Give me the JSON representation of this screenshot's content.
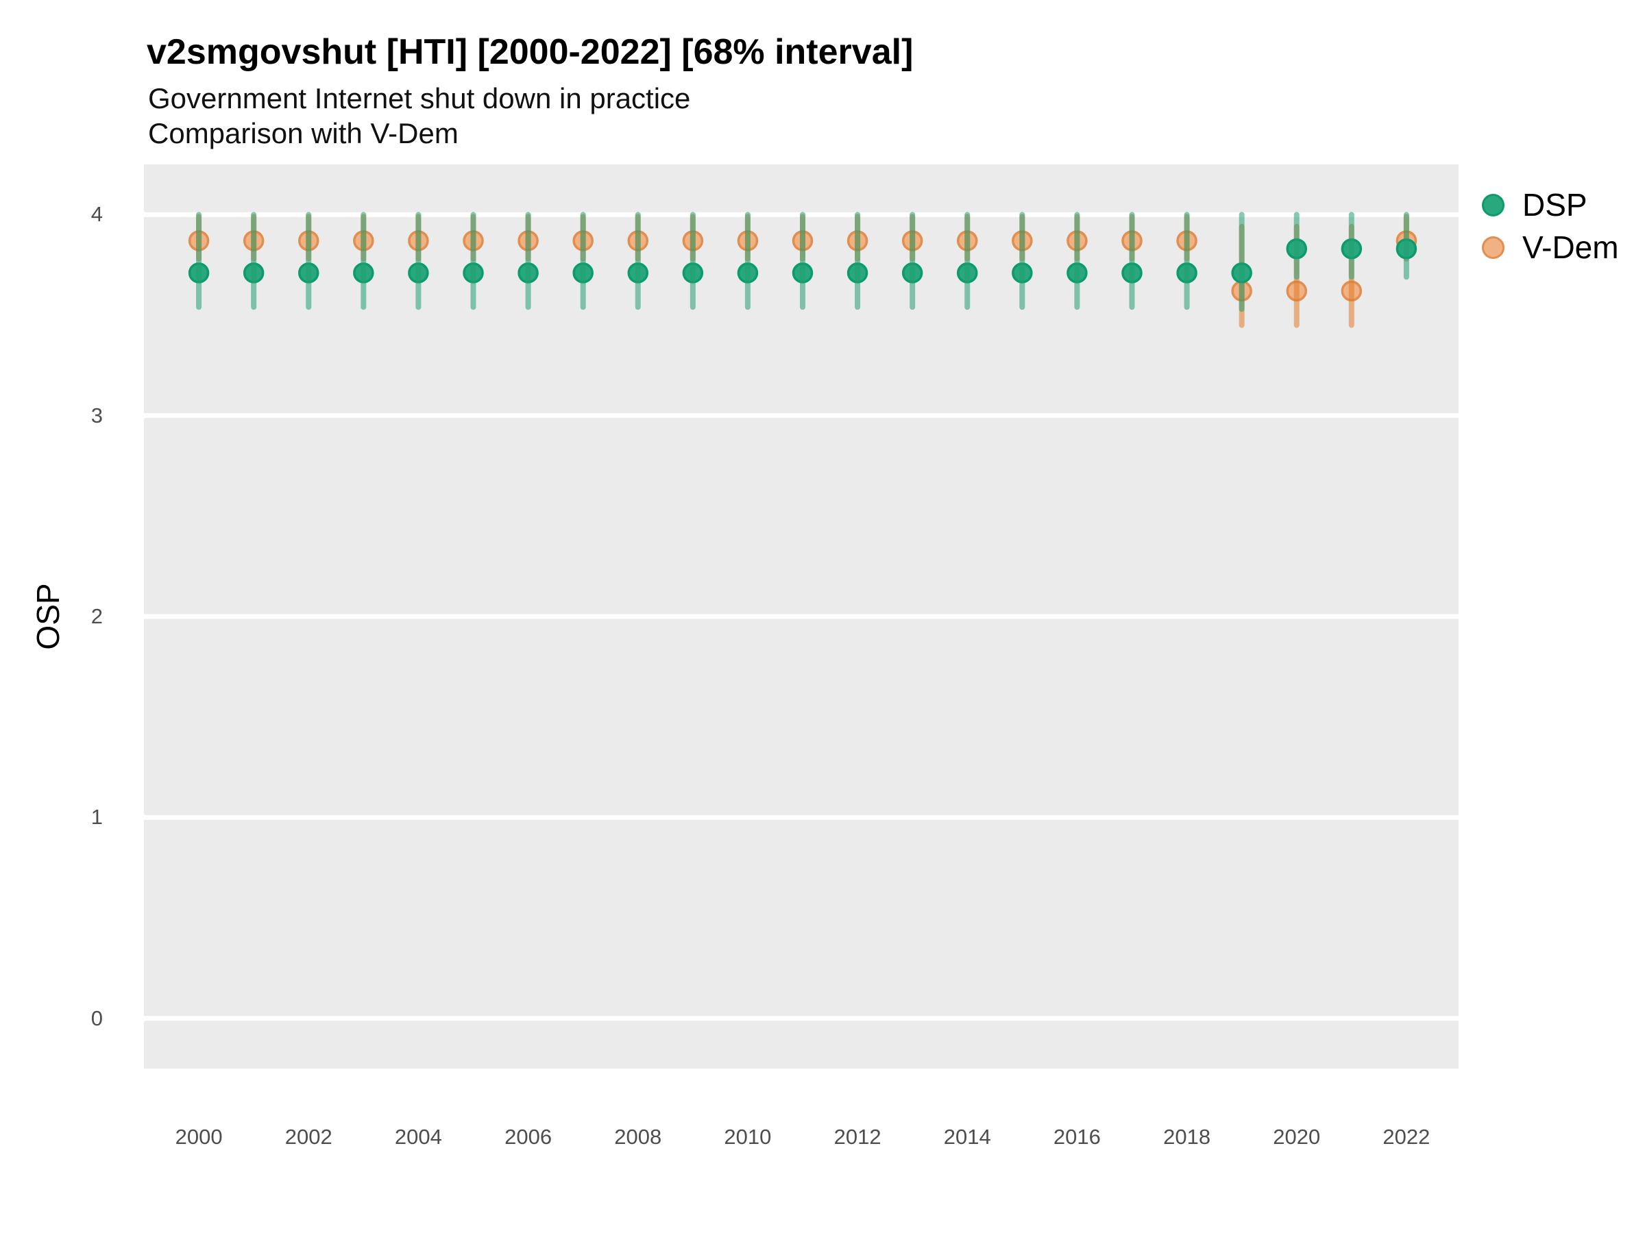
{
  "panel": {
    "bg": "#EBEBEB",
    "grid_color": "#FFFFFF"
  },
  "chart_data": {
    "type": "scatter",
    "title": "v2smgovshut [HTI] [2000-2022] [68% interval]",
    "subtitle1": "Government Internet shut down in practice",
    "subtitle2": "Comparison with V-Dem",
    "ylabel": "OSP",
    "xlabel": "",
    "ylim": [
      -0.25,
      4.25
    ],
    "xlim": [
      1999.0,
      2022.95
    ],
    "yticks": [
      0,
      1,
      2,
      3,
      4
    ],
    "xticks": [
      2000,
      2002,
      2004,
      2006,
      2008,
      2010,
      2012,
      2014,
      2016,
      2018,
      2020,
      2022
    ],
    "grid": "horizontal-major-only",
    "legend_position": "right-top",
    "interval_note": "68% interval",
    "series": [
      {
        "name": "DSP",
        "point_fill": "#29A87E",
        "point_stroke": "#0D9B6E",
        "bar_color": "rgba(32,158,113,0.55)",
        "points": [
          {
            "year": 2000,
            "est": 3.71,
            "lo": 3.54,
            "hi": 4.0
          },
          {
            "year": 2001,
            "est": 3.71,
            "lo": 3.54,
            "hi": 4.0
          },
          {
            "year": 2002,
            "est": 3.71,
            "lo": 3.54,
            "hi": 4.0
          },
          {
            "year": 2003,
            "est": 3.71,
            "lo": 3.54,
            "hi": 4.0
          },
          {
            "year": 2004,
            "est": 3.71,
            "lo": 3.54,
            "hi": 4.0
          },
          {
            "year": 2005,
            "est": 3.71,
            "lo": 3.54,
            "hi": 4.0
          },
          {
            "year": 2006,
            "est": 3.71,
            "lo": 3.54,
            "hi": 4.0
          },
          {
            "year": 2007,
            "est": 3.71,
            "lo": 3.54,
            "hi": 4.0
          },
          {
            "year": 2008,
            "est": 3.71,
            "lo": 3.54,
            "hi": 4.0
          },
          {
            "year": 2009,
            "est": 3.71,
            "lo": 3.54,
            "hi": 4.0
          },
          {
            "year": 2010,
            "est": 3.71,
            "lo": 3.54,
            "hi": 4.0
          },
          {
            "year": 2011,
            "est": 3.71,
            "lo": 3.54,
            "hi": 4.0
          },
          {
            "year": 2012,
            "est": 3.71,
            "lo": 3.54,
            "hi": 4.0
          },
          {
            "year": 2013,
            "est": 3.71,
            "lo": 3.54,
            "hi": 4.0
          },
          {
            "year": 2014,
            "est": 3.71,
            "lo": 3.54,
            "hi": 4.0
          },
          {
            "year": 2015,
            "est": 3.71,
            "lo": 3.54,
            "hi": 4.0
          },
          {
            "year": 2016,
            "est": 3.71,
            "lo": 3.54,
            "hi": 4.0
          },
          {
            "year": 2017,
            "est": 3.71,
            "lo": 3.54,
            "hi": 4.0
          },
          {
            "year": 2018,
            "est": 3.71,
            "lo": 3.54,
            "hi": 4.0
          },
          {
            "year": 2019,
            "est": 3.71,
            "lo": 3.53,
            "hi": 4.0
          },
          {
            "year": 2020,
            "est": 3.83,
            "lo": 3.69,
            "hi": 4.0
          },
          {
            "year": 2021,
            "est": 3.83,
            "lo": 3.69,
            "hi": 4.0
          },
          {
            "year": 2022,
            "est": 3.83,
            "lo": 3.69,
            "hi": 4.0
          }
        ]
      },
      {
        "name": "V-Dem",
        "point_fill": "#F0B183",
        "point_stroke": "#E18E50",
        "bar_color": "rgba(224,122,40,0.55)",
        "points": [
          {
            "year": 2000,
            "est": 3.87,
            "lo": 3.78,
            "hi": 3.99
          },
          {
            "year": 2001,
            "est": 3.87,
            "lo": 3.78,
            "hi": 3.99
          },
          {
            "year": 2002,
            "est": 3.87,
            "lo": 3.78,
            "hi": 3.99
          },
          {
            "year": 2003,
            "est": 3.87,
            "lo": 3.78,
            "hi": 3.99
          },
          {
            "year": 2004,
            "est": 3.87,
            "lo": 3.78,
            "hi": 3.99
          },
          {
            "year": 2005,
            "est": 3.87,
            "lo": 3.78,
            "hi": 3.99
          },
          {
            "year": 2006,
            "est": 3.87,
            "lo": 3.78,
            "hi": 3.99
          },
          {
            "year": 2007,
            "est": 3.87,
            "lo": 3.78,
            "hi": 3.99
          },
          {
            "year": 2008,
            "est": 3.87,
            "lo": 3.78,
            "hi": 3.99
          },
          {
            "year": 2009,
            "est": 3.87,
            "lo": 3.78,
            "hi": 3.99
          },
          {
            "year": 2010,
            "est": 3.87,
            "lo": 3.78,
            "hi": 3.99
          },
          {
            "year": 2011,
            "est": 3.87,
            "lo": 3.78,
            "hi": 3.99
          },
          {
            "year": 2012,
            "est": 3.87,
            "lo": 3.78,
            "hi": 3.99
          },
          {
            "year": 2013,
            "est": 3.87,
            "lo": 3.78,
            "hi": 3.99
          },
          {
            "year": 2014,
            "est": 3.87,
            "lo": 3.78,
            "hi": 3.99
          },
          {
            "year": 2015,
            "est": 3.87,
            "lo": 3.78,
            "hi": 3.99
          },
          {
            "year": 2016,
            "est": 3.87,
            "lo": 3.78,
            "hi": 3.99
          },
          {
            "year": 2017,
            "est": 3.87,
            "lo": 3.78,
            "hi": 3.99
          },
          {
            "year": 2018,
            "est": 3.87,
            "lo": 3.78,
            "hi": 3.99
          },
          {
            "year": 2019,
            "est": 3.62,
            "lo": 3.45,
            "hi": 3.94
          },
          {
            "year": 2020,
            "est": 3.62,
            "lo": 3.45,
            "hi": 3.94
          },
          {
            "year": 2021,
            "est": 3.62,
            "lo": 3.45,
            "hi": 3.94
          },
          {
            "year": 2022,
            "est": 3.87,
            "lo": 3.78,
            "hi": 3.99
          }
        ]
      }
    ]
  }
}
